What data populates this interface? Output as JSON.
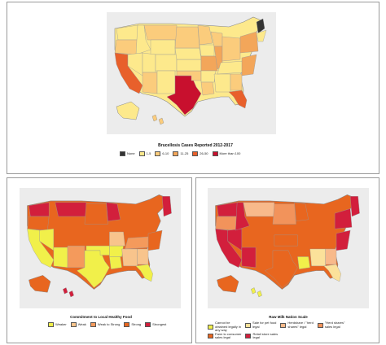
{
  "panels": [
    {
      "id": "brucellosis",
      "caption": "Brucellosis Cases Reported 2012-2017",
      "legend": [
        {
          "label": "None",
          "color": "#333333"
        },
        {
          "label": "1-5",
          "color": "#fde98c"
        },
        {
          "label": "6-10",
          "color": "#fbcc7c"
        },
        {
          "label": "11-25",
          "color": "#f3a65a"
        },
        {
          "label": "26-50",
          "color": "#e8602b"
        },
        {
          "label": "More than 100",
          "color": "#c8102e"
        }
      ]
    },
    {
      "id": "local-food",
      "caption": "Commitment to Local Healthy Food",
      "legend": [
        {
          "label": "Weaker",
          "color": "#f1f04a"
        },
        {
          "label": "Weak",
          "color": "#f8c48c"
        },
        {
          "label": "Weak to Strong",
          "color": "#f49a5c"
        },
        {
          "label": "Strong",
          "color": "#e8661f"
        },
        {
          "label": "Strongest",
          "color": "#d21f3c"
        }
      ]
    },
    {
      "id": "raw-milk",
      "caption": "Raw Milk Nation Scale",
      "legend": [
        {
          "label": "Cannot be\nobtained legally in\nany way",
          "color": "#f1f04a"
        },
        {
          "label": "Sale for pet food\nlegal",
          "color": "#fbe19a"
        },
        {
          "label": "Herdshare / \"herd\nshares\" legal",
          "color": "#f8b98a"
        },
        {
          "label": "\"Herd shares\"\nsales legal",
          "color": "#f2935b"
        },
        {
          "label": "Farm to consumer\nsales legal",
          "color": "#e8661f"
        },
        {
          "label": "Retail store sales\nlegal",
          "color": "#d21f3c"
        }
      ]
    }
  ]
}
